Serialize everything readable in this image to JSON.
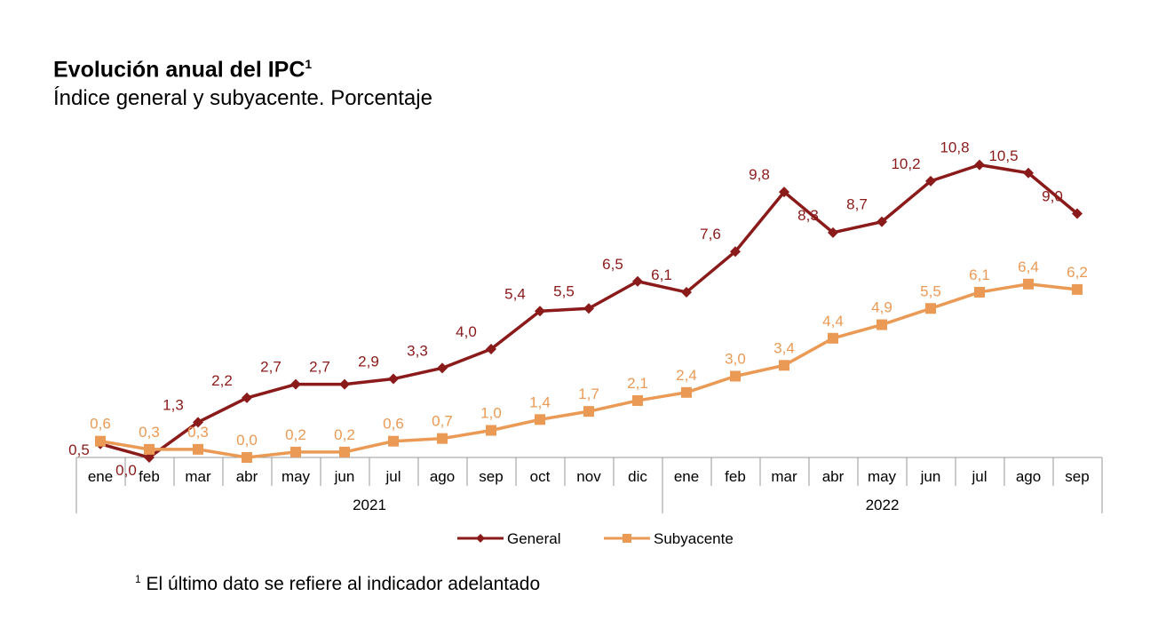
{
  "chart_data": {
    "type": "line",
    "title": "Evolución anual del IPC",
    "title_footnote_mark": "1",
    "subtitle": "Índice general y subyacente. Porcentaje",
    "categories": [
      "ene",
      "feb",
      "mar",
      "abr",
      "may",
      "jun",
      "jul",
      "ago",
      "sep",
      "oct",
      "nov",
      "dic",
      "ene",
      "feb",
      "mar",
      "abr",
      "may",
      "jun",
      "jul",
      "ago",
      "sep"
    ],
    "year_groups": [
      {
        "label": "2021",
        "count": 12
      },
      {
        "label": "2022",
        "count": 9
      }
    ],
    "series": [
      {
        "name": "General",
        "color": "#8b1a1a",
        "marker": "diamond",
        "values": [
          0.5,
          0.0,
          1.3,
          2.2,
          2.7,
          2.7,
          2.9,
          3.3,
          4.0,
          5.4,
          5.5,
          6.5,
          6.1,
          7.6,
          9.8,
          8.3,
          8.7,
          10.2,
          10.8,
          10.5,
          9.0
        ]
      },
      {
        "name": "Subyacente",
        "color": "#eb9a55",
        "marker": "square",
        "values": [
          0.6,
          0.3,
          0.3,
          0.0,
          0.2,
          0.2,
          0.6,
          0.7,
          1.0,
          1.4,
          1.7,
          2.1,
          2.4,
          3.0,
          3.4,
          4.4,
          4.9,
          5.5,
          6.1,
          6.4,
          6.2
        ]
      }
    ],
    "ylim": [
      0,
      11
    ],
    "grid": false,
    "legend_position": "bottom",
    "decimal_separator": ","
  },
  "footnote": {
    "mark": "1",
    "text": "El último dato se refiere al indicador adelantado"
  }
}
